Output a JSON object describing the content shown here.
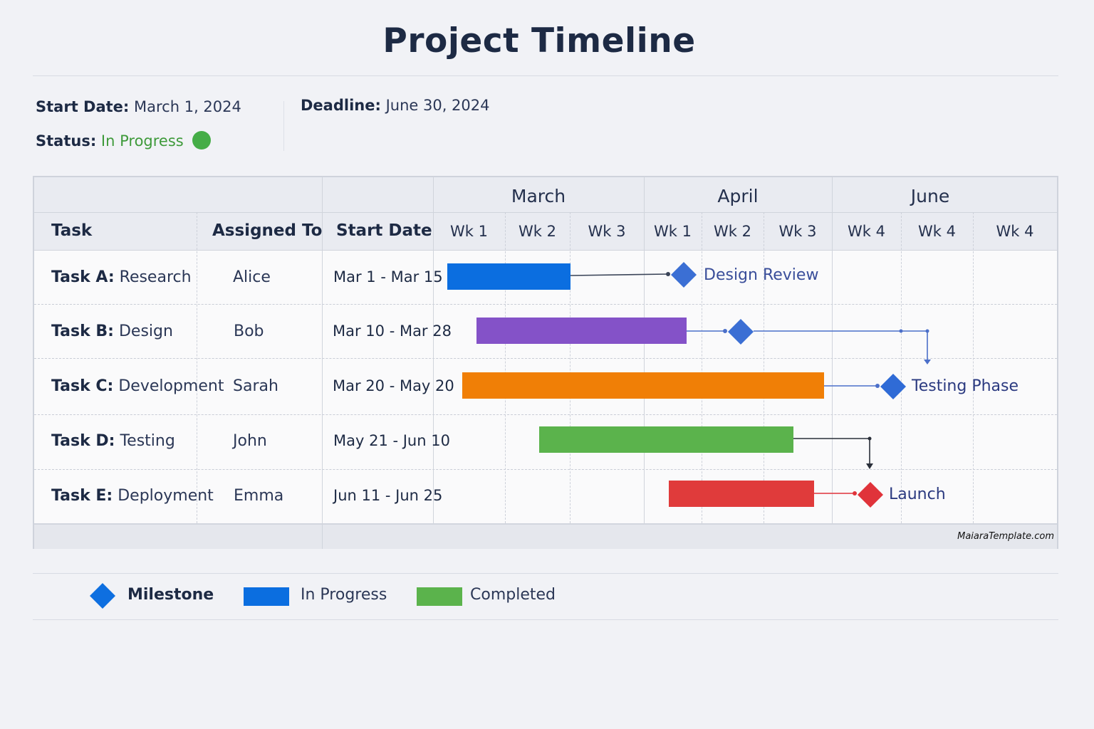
{
  "title": "Project Timeline",
  "info": {
    "start_label": "Start Date:",
    "start_value": "March 1, 2024",
    "deadline_label": "Deadline:",
    "deadline_value": "June 30, 2024",
    "status_label": "Status:",
    "status_value": "In Progress",
    "status_color": "#45ad47"
  },
  "table": {
    "months": [
      "March",
      "April",
      "June"
    ],
    "col_task": "Task",
    "col_assigned": "Assigned To",
    "col_start": "Start Date",
    "weeks": [
      "Wk 1",
      "Wk 2",
      "Wk 3",
      "Wk 1",
      "Wk 2",
      "Wk 3",
      "Wk 4",
      "Wk 4",
      "Wk 4"
    ],
    "rows": [
      {
        "task_id": "Task A:",
        "task_name": "Research",
        "assignee": "Alice",
        "dates": "Mar 1 - Mar 15",
        "color": "#0b6ee0",
        "milestone": "Design Review",
        "milestone_color": "#3b6fd4"
      },
      {
        "task_id": "Task B:",
        "task_name": "Design",
        "assignee": "Bob",
        "dates": "Mar 10 - Mar 28",
        "color": "#8452c8",
        "milestone": "",
        "milestone_color": "#3b6fd4"
      },
      {
        "task_id": "Task C:",
        "task_name": "Development",
        "assignee": "Sarah",
        "dates": "Mar 20 - May 20",
        "color": "#f07f06",
        "milestone": "Testing Phase",
        "milestone_color": "#2f6bd6"
      },
      {
        "task_id": "Task D:",
        "task_name": "Testing",
        "assignee": "John",
        "dates": "May 21 - Jun 10",
        "color": "#5bb34c",
        "milestone": "",
        "milestone_color": ""
      },
      {
        "task_id": "Task E:",
        "task_name": "Deployment",
        "assignee": "Emma",
        "dates": "Jun 11 - Jun 25",
        "color": "#e03b3b",
        "milestone": "Launch",
        "milestone_color": "#e0333a"
      }
    ]
  },
  "watermark": "MaiaraTemplate.com",
  "legend": {
    "milestone": "Milestone",
    "milestone_color": "#0e6fe0",
    "in_progress": "In Progress",
    "in_progress_color": "#0b6ee0",
    "completed": "Completed",
    "completed_color": "#5bb34c"
  }
}
